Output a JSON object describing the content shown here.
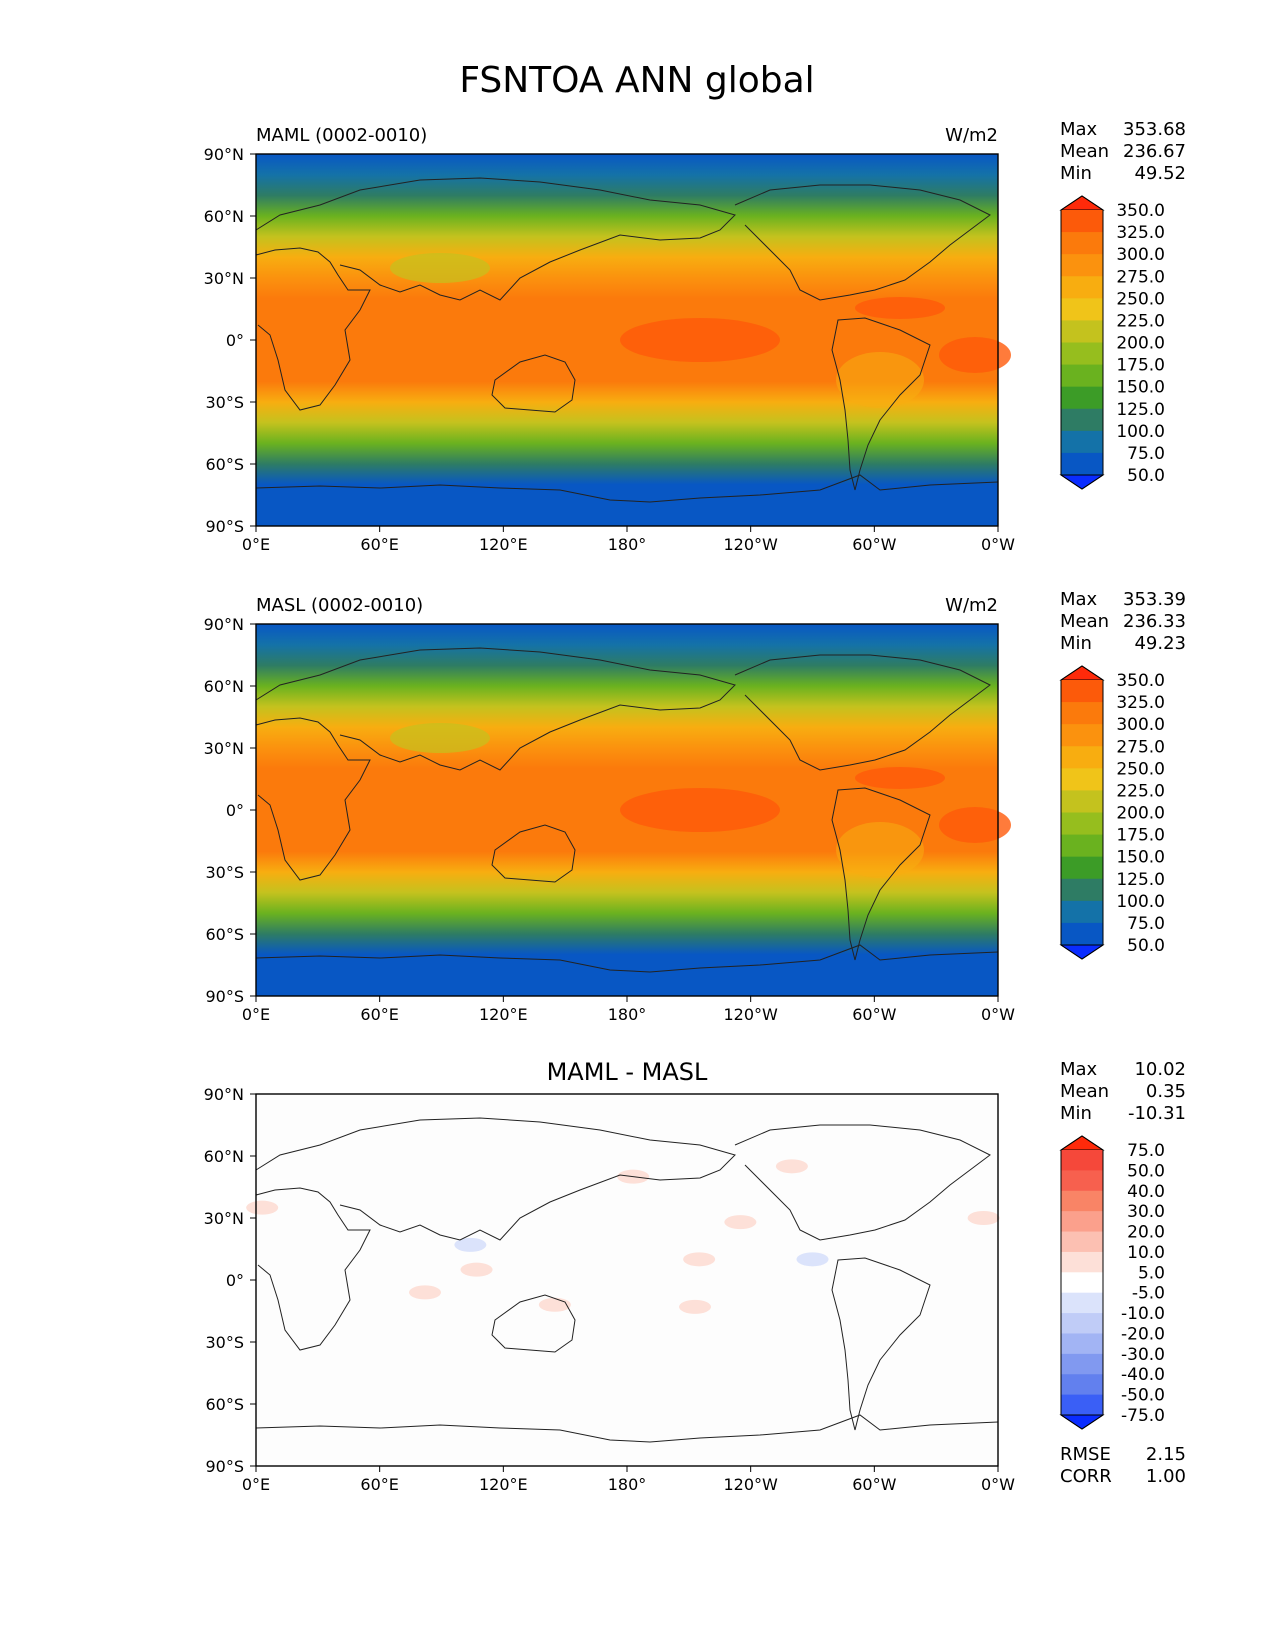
{
  "figure": {
    "title": "FSNTOA ANN global",
    "x_ticks": [
      "0°E",
      "60°E",
      "120°E",
      "180°",
      "120°W",
      "60°W",
      "0°W"
    ],
    "y_ticks": [
      "90°N",
      "60°N",
      "30°N",
      "0°",
      "30°S",
      "60°S",
      "90°S"
    ]
  },
  "chart_data": [
    {
      "type": "heatmap",
      "title": "",
      "left_label": "MAML (0002-0010)",
      "right_label": "W/m2",
      "xlim": [
        0,
        360
      ],
      "ylim": [
        -90,
        90
      ],
      "stats": {
        "max_label": "Max",
        "max": "353.68",
        "mean_label": "Mean",
        "mean": "236.67",
        "min_label": "Min",
        "min": "49.52"
      },
      "colorbar": {
        "levels": [
          "350.0",
          "325.0",
          "300.0",
          "275.0",
          "250.0",
          "225.0",
          "200.0",
          "175.0",
          "150.0",
          "125.0",
          "100.0",
          "75.0",
          "50.0"
        ],
        "colors": [
          "#ff2a0a",
          "#fc5a0a",
          "#fb7a0c",
          "#fb920e",
          "#f8ad10",
          "#f0c419",
          "#c4c21e",
          "#96be1e",
          "#6ab21f",
          "#3c9c27",
          "#2e7c64",
          "#1472a8",
          "#0857c4",
          "#0a2cff"
        ],
        "under_color": "#0a2cff",
        "over_color": "#ff2a0a",
        "extend": "both"
      },
      "zonal_profile": [
        {
          "lat": 90,
          "value": 60
        },
        {
          "lat": 80,
          "value": 80
        },
        {
          "lat": 70,
          "value": 115
        },
        {
          "lat": 60,
          "value": 160
        },
        {
          "lat": 50,
          "value": 205
        },
        {
          "lat": 40,
          "value": 260
        },
        {
          "lat": 30,
          "value": 295
        },
        {
          "lat": 20,
          "value": 315
        },
        {
          "lat": 10,
          "value": 320
        },
        {
          "lat": 0,
          "value": 315
        },
        {
          "lat": -10,
          "value": 320
        },
        {
          "lat": -20,
          "value": 305
        },
        {
          "lat": -30,
          "value": 270
        },
        {
          "lat": -40,
          "value": 215
        },
        {
          "lat": -50,
          "value": 150
        },
        {
          "lat": -60,
          "value": 100
        },
        {
          "lat": -70,
          "value": 55
        },
        {
          "lat": -80,
          "value": 55
        },
        {
          "lat": -90,
          "value": 55
        }
      ]
    },
    {
      "type": "heatmap",
      "title": "",
      "left_label": "MASL (0002-0010)",
      "right_label": "W/m2",
      "xlim": [
        0,
        360
      ],
      "ylim": [
        -90,
        90
      ],
      "stats": {
        "max_label": "Max",
        "max": "353.39",
        "mean_label": "Mean",
        "mean": "236.33",
        "min_label": "Min",
        "min": "49.23"
      },
      "colorbar": {
        "levels": [
          "350.0",
          "325.0",
          "300.0",
          "275.0",
          "250.0",
          "225.0",
          "200.0",
          "175.0",
          "150.0",
          "125.0",
          "100.0",
          "75.0",
          "50.0"
        ],
        "colors": [
          "#ff2a0a",
          "#fc5a0a",
          "#fb7a0c",
          "#fb920e",
          "#f8ad10",
          "#f0c419",
          "#c4c21e",
          "#96be1e",
          "#6ab21f",
          "#3c9c27",
          "#2e7c64",
          "#1472a8",
          "#0857c4",
          "#0a2cff"
        ],
        "under_color": "#0a2cff",
        "over_color": "#ff2a0a",
        "extend": "both"
      },
      "zonal_profile": [
        {
          "lat": 90,
          "value": 60
        },
        {
          "lat": 80,
          "value": 80
        },
        {
          "lat": 70,
          "value": 115
        },
        {
          "lat": 60,
          "value": 160
        },
        {
          "lat": 50,
          "value": 205
        },
        {
          "lat": 40,
          "value": 260
        },
        {
          "lat": 30,
          "value": 295
        },
        {
          "lat": 20,
          "value": 315
        },
        {
          "lat": 10,
          "value": 320
        },
        {
          "lat": 0,
          "value": 315
        },
        {
          "lat": -10,
          "value": 320
        },
        {
          "lat": -20,
          "value": 305
        },
        {
          "lat": -30,
          "value": 270
        },
        {
          "lat": -40,
          "value": 215
        },
        {
          "lat": -50,
          "value": 150
        },
        {
          "lat": -60,
          "value": 100
        },
        {
          "lat": -70,
          "value": 55
        },
        {
          "lat": -80,
          "value": 55
        },
        {
          "lat": -90,
          "value": 55
        }
      ]
    },
    {
      "type": "heatmap",
      "title": "MAML - MASL",
      "left_label": "",
      "right_label": "",
      "xlim": [
        0,
        360
      ],
      "ylim": [
        -90,
        90
      ],
      "stats": {
        "max_label": "Max",
        "max": "10.02",
        "mean_label": "Mean",
        "mean": "0.35",
        "min_label": "Min",
        "min": "-10.31"
      },
      "colorbar": {
        "levels": [
          "75.0",
          "50.0",
          "40.0",
          "30.0",
          "20.0",
          "10.0",
          "5.0",
          "-5.0",
          "-10.0",
          "-20.0",
          "-30.0",
          "-40.0",
          "-50.0",
          "-75.0"
        ],
        "colors": [
          "#ff2a0a",
          "#f5483a",
          "#f7604e",
          "#f98466",
          "#fba08c",
          "#fcc0b2",
          "#fde0d8",
          "#ffffff",
          "#dbe3fb",
          "#c0ccf7",
          "#a2b4f4",
          "#8199f0",
          "#6280ee",
          "#3a5ff6",
          "#0a2cff"
        ],
        "under_color": "#0a2cff",
        "over_color": "#ff2a0a",
        "extend": "both"
      },
      "anomalies": [
        {
          "lon": 260,
          "lat": 55,
          "value": 7
        },
        {
          "lon": 235,
          "lat": 28,
          "value": 6
        },
        {
          "lon": 215,
          "lat": 10,
          "value": 6
        },
        {
          "lon": 107,
          "lat": 5,
          "value": 7
        },
        {
          "lon": 82,
          "lat": -6,
          "value": 6
        },
        {
          "lon": 213,
          "lat": -13,
          "value": 6
        },
        {
          "lon": 3,
          "lat": 35,
          "value": 7
        },
        {
          "lon": 353,
          "lat": 30,
          "value": 8
        },
        {
          "lon": 104,
          "lat": 17,
          "value": -7
        },
        {
          "lon": 270,
          "lat": 10,
          "value": -7
        },
        {
          "lon": 183,
          "lat": 50,
          "value": 6
        },
        {
          "lon": 145,
          "lat": -12,
          "value": 6
        }
      ],
      "rmse_label": "RMSE",
      "rmse": "2.15",
      "corr_label": "CORR",
      "corr": "1.00"
    }
  ]
}
